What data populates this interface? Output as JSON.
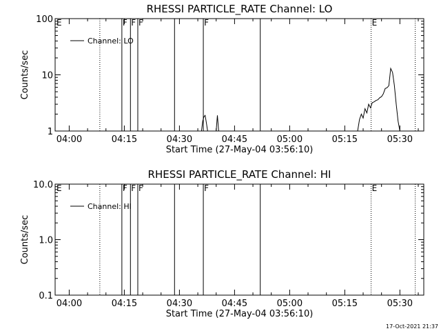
{
  "footer": {
    "timestamp": "17-Oct-2021 21:37"
  },
  "chart_data": [
    {
      "type": "line",
      "title": "RHESSI PARTICLE_RATE Channel: LO",
      "xlabel": "Start Time (27-May-04 03:56:10)",
      "ylabel": "Counts/sec",
      "yscale": "log",
      "xlim": [
        "03:56:10",
        "05:36:30"
      ],
      "ylim": [
        1,
        100
      ],
      "x_ticks": [
        "04:00",
        "04:15",
        "04:30",
        "04:45",
        "05:00",
        "05:15",
        "05:30"
      ],
      "y_ticks": [
        {
          "value": 1,
          "label": "1"
        },
        {
          "value": 10,
          "label": "10"
        },
        {
          "value": 100,
          "label": "100"
        }
      ],
      "legend": {
        "position": "top-left",
        "entries": [
          "Channel: LO"
        ]
      },
      "series": [
        {
          "name": "Channel: LO",
          "x": [
            "04:36:00",
            "04:36:20",
            "04:36:40",
            "04:37:00",
            "04:37:20",
            "04:37:40",
            "04:40:00",
            "04:40:20",
            "04:40:40",
            "05:18:30",
            "05:19:00",
            "05:19:30",
            "05:20:00",
            "05:20:30",
            "05:21:00",
            "05:21:30",
            "05:22:00",
            "05:22:30",
            "05:23:00",
            "05:23:30",
            "05:24:00",
            "05:24:30",
            "05:25:00",
            "05:25:30",
            "05:26:00",
            "05:26:30",
            "05:27:00",
            "05:27:30",
            "05:28:00",
            "05:28:30",
            "05:29:00",
            "05:29:30",
            "05:30:00"
          ],
          "y": [
            1.0,
            1.5,
            1.8,
            1.9,
            1.4,
            1.0,
            1.0,
            1.9,
            1.0,
            1.0,
            1.6,
            2.0,
            1.7,
            2.5,
            2.1,
            3.0,
            2.6,
            3.2,
            3.3,
            3.5,
            3.6,
            3.9,
            4.1,
            4.6,
            5.7,
            5.9,
            6.4,
            13.0,
            11.0,
            6.5,
            3.0,
            1.5,
            1.0
          ]
        }
      ],
      "annotations": [
        {
          "time": "04:08:20",
          "style": "dotted",
          "label": ""
        },
        {
          "time": "04:14:20",
          "style": "solid",
          "label": "F"
        },
        {
          "time": "04:16:40",
          "style": "solid",
          "label": "F"
        },
        {
          "time": "04:18:40",
          "style": "solid",
          "label": "F"
        },
        {
          "time": "04:28:40",
          "style": "solid",
          "label": ""
        },
        {
          "time": "04:36:30",
          "style": "solid",
          "label": "F"
        },
        {
          "time": "04:52:00",
          "style": "solid",
          "label": ""
        },
        {
          "time": "05:22:10",
          "style": "dotted",
          "label": "E"
        },
        {
          "time": "05:34:10",
          "style": "dotted",
          "label": ""
        }
      ],
      "corner_label": "E"
    },
    {
      "type": "line",
      "title": "RHESSI PARTICLE_RATE Channel: HI",
      "xlabel": "Start Time (27-May-04 03:56:10)",
      "ylabel": "Counts/sec",
      "yscale": "log",
      "xlim": [
        "03:56:10",
        "05:36:30"
      ],
      "ylim": [
        0.1,
        10
      ],
      "x_ticks": [
        "04:00",
        "04:15",
        "04:30",
        "04:45",
        "05:00",
        "05:15",
        "05:30"
      ],
      "y_ticks": [
        {
          "value": 0.1,
          "label": "0.1"
        },
        {
          "value": 1,
          "label": "1.0"
        },
        {
          "value": 10,
          "label": "10.0"
        }
      ],
      "legend": {
        "position": "top-left",
        "entries": [
          "Channel: HI"
        ]
      },
      "series": [
        {
          "name": "Channel: HI",
          "x": [],
          "y": []
        }
      ],
      "annotations": [
        {
          "time": "04:08:20",
          "style": "dotted",
          "label": ""
        },
        {
          "time": "04:14:20",
          "style": "solid",
          "label": "F"
        },
        {
          "time": "04:16:40",
          "style": "solid",
          "label": "F"
        },
        {
          "time": "04:18:40",
          "style": "solid",
          "label": "F"
        },
        {
          "time": "04:28:40",
          "style": "solid",
          "label": ""
        },
        {
          "time": "04:36:30",
          "style": "solid",
          "label": "F"
        },
        {
          "time": "04:52:00",
          "style": "solid",
          "label": ""
        },
        {
          "time": "05:22:10",
          "style": "dotted",
          "label": "E"
        },
        {
          "time": "05:34:10",
          "style": "dotted",
          "label": ""
        }
      ],
      "corner_label": "E"
    }
  ]
}
